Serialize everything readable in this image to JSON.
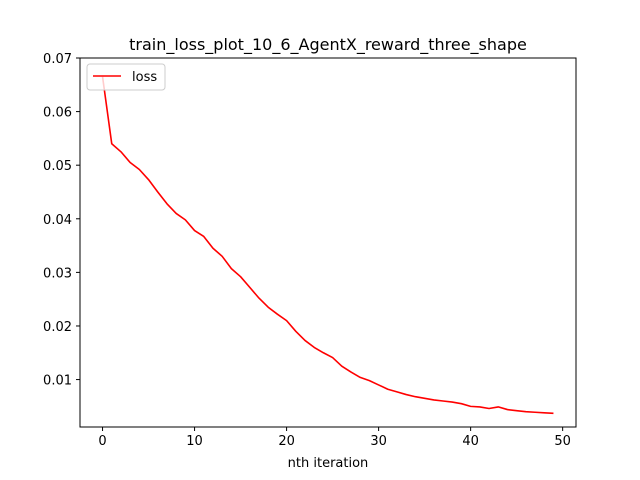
{
  "chart_data": {
    "type": "line",
    "title": "train_loss_plot_10_6_AgentX_reward_three_shape",
    "xlabel": "nth iteration",
    "ylabel": "",
    "xlim": [
      -2.45,
      51.45
    ],
    "ylim": [
      0.00115,
      0.07
    ],
    "xticks": [
      0,
      10,
      20,
      30,
      40,
      50
    ],
    "yticks": [
      0.01,
      0.02,
      0.03,
      0.04,
      0.05,
      0.06,
      0.07
    ],
    "ytick_labels": [
      "0.01",
      "0.02",
      "0.03",
      "0.04",
      "0.05",
      "0.06",
      "0.07"
    ],
    "grid": false,
    "legend_position": "top-left",
    "series": [
      {
        "name": "loss",
        "color": "#ff0000",
        "x": [
          0,
          1,
          2,
          3,
          4,
          5,
          6,
          7,
          8,
          9,
          10,
          11,
          12,
          13,
          14,
          15,
          16,
          17,
          18,
          19,
          20,
          21,
          22,
          23,
          24,
          25,
          26,
          27,
          28,
          29,
          30,
          31,
          32,
          33,
          34,
          35,
          36,
          37,
          38,
          39,
          40,
          41,
          42,
          43,
          44,
          45,
          46,
          47,
          48,
          49
        ],
        "y": [
          0.0665,
          0.054,
          0.0525,
          0.0505,
          0.0492,
          0.0473,
          0.045,
          0.0428,
          0.041,
          0.0398,
          0.0378,
          0.0367,
          0.0345,
          0.033,
          0.0307,
          0.0292,
          0.0272,
          0.0252,
          0.0235,
          0.0222,
          0.021,
          0.019,
          0.0173,
          0.016,
          0.015,
          0.0141,
          0.0125,
          0.0114,
          0.0104,
          0.0098,
          0.009,
          0.0082,
          0.0077,
          0.0072,
          0.0068,
          0.0065,
          0.0062,
          0.006,
          0.0058,
          0.0055,
          0.005,
          0.0049,
          0.0046,
          0.0049,
          0.0044,
          0.0042,
          0.004,
          0.0039,
          0.0038,
          0.0037
        ]
      }
    ]
  }
}
